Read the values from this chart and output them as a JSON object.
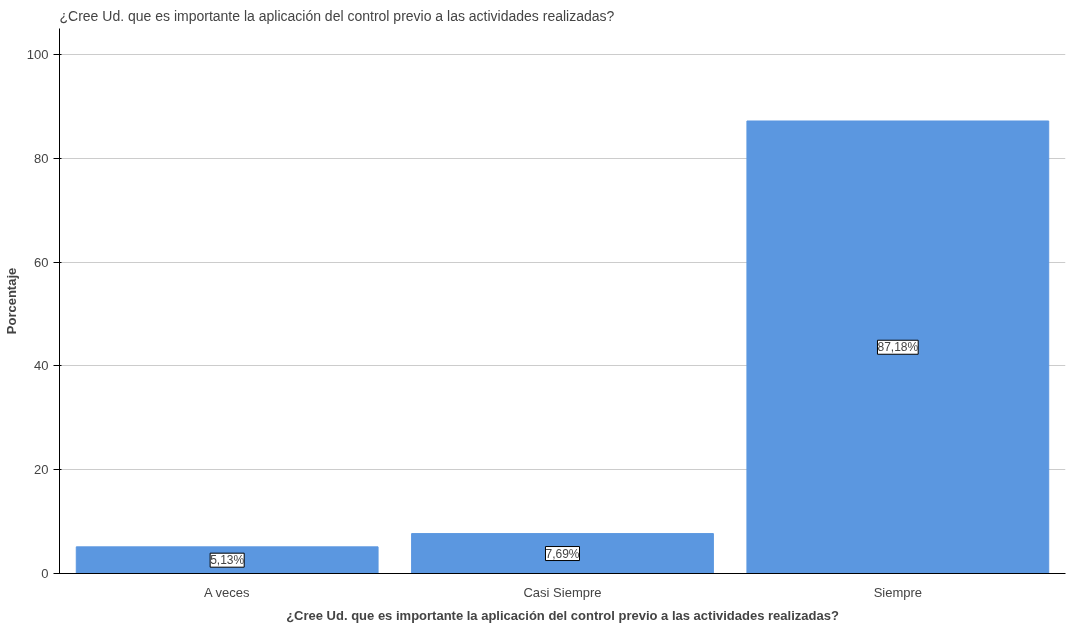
{
  "chart_data": {
    "type": "bar",
    "title": "¿Cree Ud. que es importante la aplicación del control previo a las actividades realizadas?",
    "xlabel": "¿Cree Ud. que es importante la aplicación del control previo a las actividades realizadas?",
    "ylabel": "Porcentaje",
    "categories": [
      "A veces",
      "Casi Siempre",
      "Siempre"
    ],
    "values": [
      5.13,
      7.69,
      87.18
    ],
    "value_labels": [
      "5,13%",
      "7,69%",
      "87,18%"
    ],
    "color": "#5b97e0",
    "ylim": [
      0,
      105
    ],
    "yticks": [
      0,
      20,
      40,
      60,
      80,
      100
    ],
    "grid": "y"
  }
}
